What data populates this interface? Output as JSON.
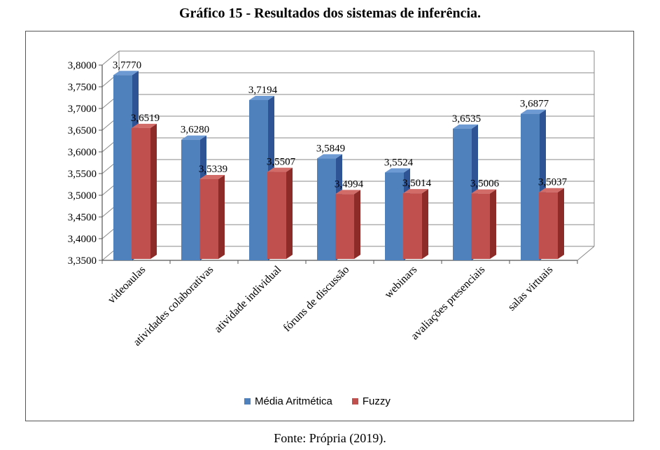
{
  "caption": {
    "title": "Gráfico 15 - Resultados dos sistemas de inferência.",
    "source": "Fonte: Própria (2019)."
  },
  "colors": {
    "media": "#4F81BD",
    "media_side": "#2F5496",
    "media_top": "#6E9AD3",
    "fuzzy": "#C0504D",
    "fuzzy_side": "#8C2B28",
    "fuzzy_top": "#D16C69",
    "grid": "#888888"
  },
  "chart_data": {
    "type": "bar",
    "categories": [
      "videoaulas",
      "atividades colaborativas",
      "atividade individual",
      "fóruns de discussão",
      "webinars",
      "avaliações presenciais",
      "salas virtuais"
    ],
    "series": [
      {
        "name": "Média Aritmética",
        "values": [
          3.777,
          3.628,
          3.7194,
          3.5849,
          3.5524,
          3.6535,
          3.6877
        ],
        "labels": [
          "3,7770",
          "3,6280",
          "3,7194",
          "3,5849",
          "3,5524",
          "3,6535",
          "3,6877"
        ]
      },
      {
        "name": "Fuzzy",
        "values": [
          3.6519,
          3.5339,
          3.5507,
          3.4994,
          3.5014,
          3.5006,
          3.5037
        ],
        "labels": [
          "3,6519",
          "3,5339",
          "3,5507",
          "3,4994",
          "3,5014",
          "3,5006",
          "3,5037"
        ]
      }
    ],
    "ylim": [
      3.35,
      3.8
    ],
    "yticks": [
      "3,3500",
      "3,4000",
      "3,4500",
      "3,5000",
      "3,5500",
      "3,6000",
      "3,6500",
      "3,7000",
      "3,7500",
      "3,8000"
    ],
    "grid": true,
    "legend_position": "bottom",
    "style": "3d-clustered-column"
  }
}
